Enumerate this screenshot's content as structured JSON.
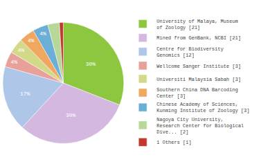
{
  "chart_data": {
    "type": "pie",
    "categories": [
      "University of Malaya, Museum\nof Zoology [21]",
      "Mined from GenBank, NCBI [21]",
      "Centre for Biodiversity\nGenomics [12]",
      "Wellcome Sanger Institute [3]",
      "Universiti Malaysia Sabah [3]",
      "Southern China DNA Barcoding\nCenter [3]",
      "Chinese Academy of Sciences,\nKunming Institute of Zoology [3]",
      "Nagoya City University,\nResearch Center for Biological\nDive... [2]",
      "1 Others [1]"
    ],
    "values": [
      30,
      30,
      17,
      4,
      4,
      4,
      4,
      3,
      1
    ],
    "value_labels": [
      "30%",
      "30%",
      "17%",
      "4%",
      "4%",
      "4%",
      "4%",
      null,
      null
    ],
    "colors": [
      "#8dc63f",
      "#d4b8e0",
      "#aec6e8",
      "#e8a09a",
      "#d4d98a",
      "#f0a860",
      "#6baed6",
      "#b8d89a",
      "#c0392b"
    ],
    "data_labels": true,
    "legend": "right"
  }
}
